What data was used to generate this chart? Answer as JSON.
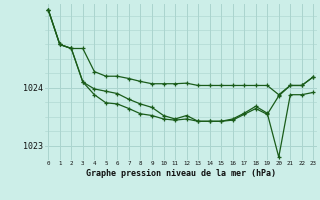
{
  "xlabel": "Graphe pression niveau de la mer (hPa)",
  "bg_color": "#cceee8",
  "grid_color": "#aad4ce",
  "line_color": "#1a5c1a",
  "ylim": [
    1022.75,
    1025.45
  ],
  "xlim": [
    -0.3,
    23.3
  ],
  "xticks": [
    0,
    1,
    2,
    3,
    4,
    5,
    6,
    7,
    8,
    9,
    10,
    11,
    12,
    13,
    14,
    15,
    16,
    17,
    18,
    19,
    20,
    21,
    22,
    23
  ],
  "yticks": [
    1023,
    1024
  ],
  "line1": [
    1025.35,
    1024.75,
    1024.68,
    1024.68,
    1024.28,
    1024.2,
    1024.2,
    1024.16,
    1024.11,
    1024.07,
    1024.07,
    1024.07,
    1024.08,
    1024.04,
    1024.04,
    1024.04,
    1024.04,
    1024.04,
    1024.04,
    1024.04,
    1023.88,
    1024.04,
    1024.04,
    1024.19
  ],
  "line2": [
    1025.35,
    1024.75,
    1024.68,
    1024.1,
    1023.88,
    1023.74,
    1023.72,
    1023.64,
    1023.55,
    1023.52,
    1023.46,
    1023.44,
    1023.46,
    1023.42,
    1023.42,
    1023.42,
    1023.46,
    1023.56,
    1023.68,
    1023.56,
    1022.8,
    1023.88,
    1023.88,
    1023.92
  ],
  "line3": [
    1025.35,
    1024.75,
    1024.68,
    1024.1,
    1023.98,
    1023.94,
    1023.9,
    1023.8,
    1023.72,
    1023.66,
    1023.52,
    1023.46,
    1023.52,
    1023.42,
    1023.42,
    1023.42,
    1023.44,
    1023.54,
    1023.64,
    1023.54,
    1023.86,
    1024.04,
    1024.04,
    1024.19
  ]
}
